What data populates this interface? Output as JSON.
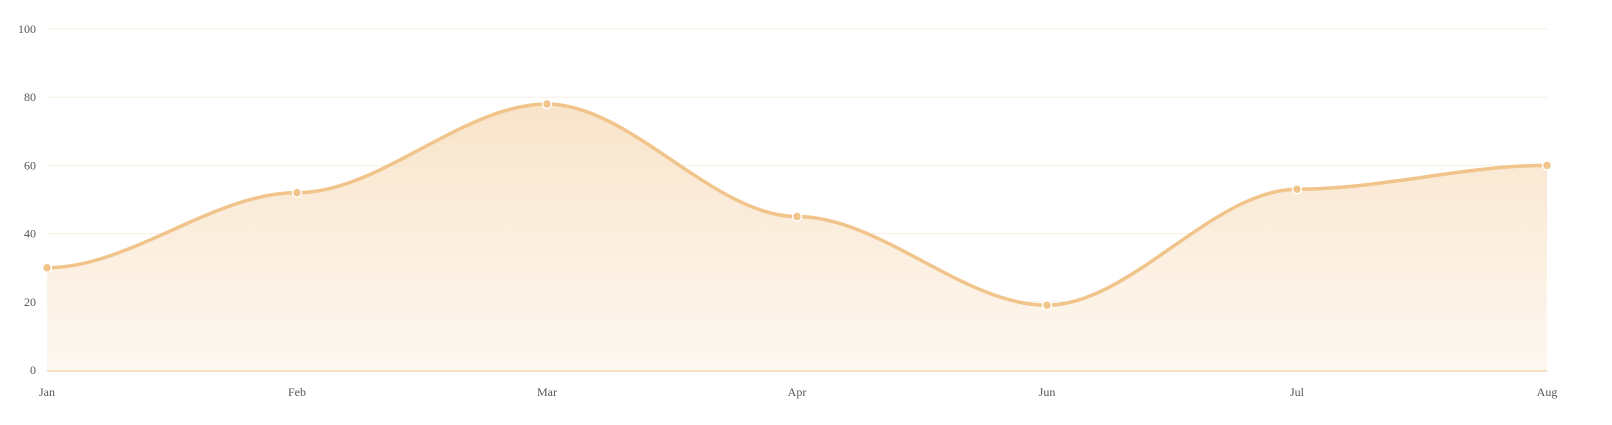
{
  "chart_data": {
    "type": "area",
    "title": "",
    "xlabel": "",
    "ylabel": "",
    "categories": [
      "Jan",
      "Feb",
      "Mar",
      "Apr",
      "Jun",
      "Jul",
      "Aug"
    ],
    "values": [
      30,
      52,
      78,
      45,
      19,
      53,
      60
    ],
    "ylim": [
      0,
      100
    ],
    "yticks": [
      "0",
      "20",
      "40",
      "60",
      "80",
      "100"
    ],
    "grid": true,
    "smooth": true,
    "colors": {
      "line": "#f0c48a",
      "fill_top": "#f7dfc0",
      "fill_bottom": "#fdf6ee",
      "point": "#f0c48a",
      "point_stroke": "#ffffff",
      "grid": "#f6efe3",
      "axis": "#f3dfc5"
    }
  }
}
